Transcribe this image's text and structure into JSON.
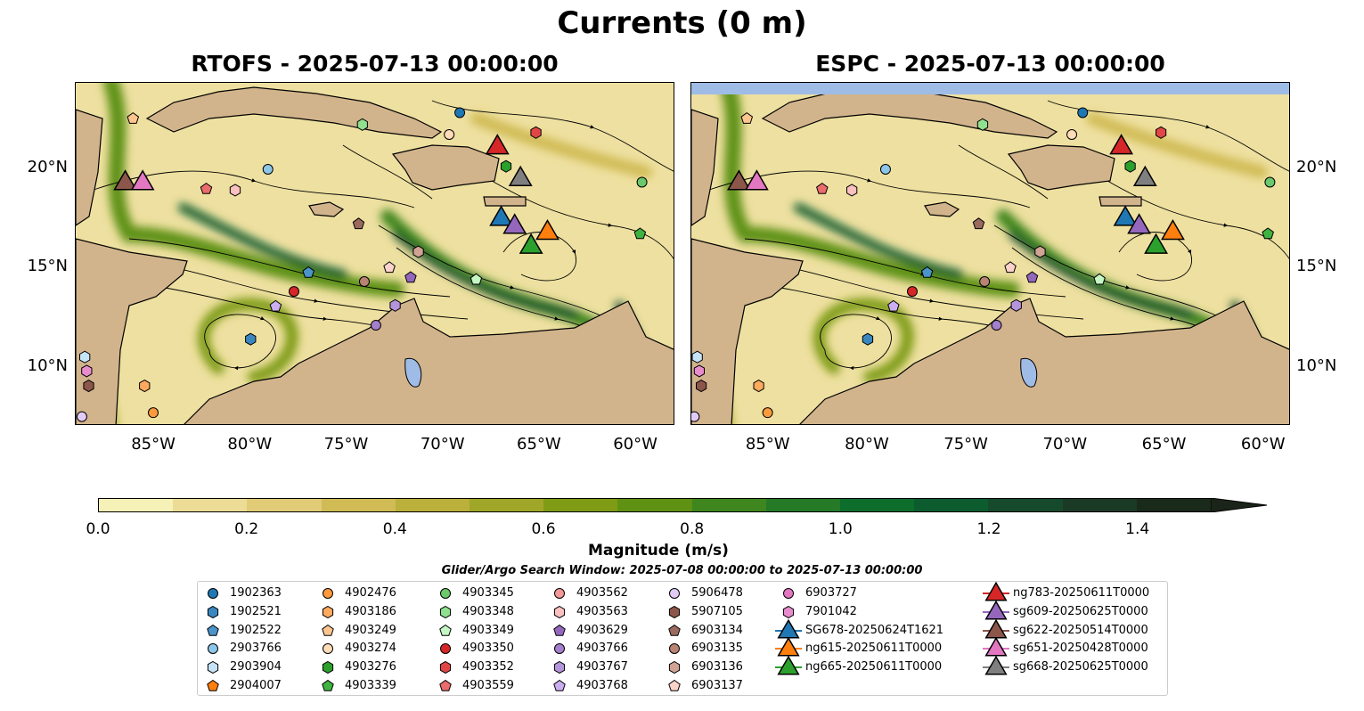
{
  "title": "Currents (0 m)",
  "maps": [
    {
      "title": "RTOFS - 2025-07-13 00:00:00",
      "model": "RTOFS"
    },
    {
      "title": "ESPC - 2025-07-13 00:00:00",
      "model": "ESPC"
    }
  ],
  "lat_ticks": [
    {
      "value": 20,
      "label": "20°N"
    },
    {
      "value": 15,
      "label": "15°N"
    },
    {
      "value": 10,
      "label": "10°N"
    }
  ],
  "lon_ticks": [
    {
      "value": -85,
      "label": "85°W"
    },
    {
      "value": -80,
      "label": "80°W"
    },
    {
      "value": -75,
      "label": "75°W"
    },
    {
      "value": -70,
      "label": "70°W"
    },
    {
      "value": -65,
      "label": "65°W"
    },
    {
      "value": -60,
      "label": "60°W"
    }
  ],
  "colorbar": {
    "label": "Magnitude (m/s)",
    "ticks": [
      "0.0",
      "0.2",
      "0.4",
      "0.6",
      "0.8",
      "1.0",
      "1.2",
      "1.4"
    ],
    "range": [
      0,
      1.5
    ],
    "colors": [
      "#f6f1b7",
      "#ecdc96",
      "#e1cb76",
      "#d0bb55",
      "#bbb03b",
      "#a0a628",
      "#7f9c14",
      "#5f9213",
      "#3f861f",
      "#257a27",
      "#0d6e2c",
      "#0c5c2f",
      "#164a2d",
      "#1a3a25",
      "#1a2a1a"
    ],
    "extend_color": "#1a2418"
  },
  "search_window": "Glider/Argo Search Window: 2025-07-08 00:00:00 to 2025-07-13 00:00:00",
  "floats": [
    {
      "id": "1902363",
      "color": "#1f77b4",
      "shape": "circle",
      "lon": -69.15,
      "lat": 22.8
    },
    {
      "id": "1902521",
      "color": "#3a87c0",
      "shape": "hexagon",
      "lon": -80.0,
      "lat": 11.4
    },
    {
      "id": "1902522",
      "color": "#4a94c9",
      "shape": "pentagon",
      "lon": -77.0,
      "lat": 14.75
    },
    {
      "id": "2903766",
      "color": "#8ec6ea",
      "shape": "circle",
      "lon": -79.1,
      "lat": 19.95
    },
    {
      "id": "2903904",
      "color": "#c6e4f7",
      "shape": "hexagon",
      "lon": -88.6,
      "lat": 10.5
    },
    {
      "id": "2904007",
      "color": "#ff7f0e",
      "shape": "pentagon",
      "lon": null,
      "lat": null
    },
    {
      "id": "4902476",
      "color": "#ff9a3c",
      "shape": "circle",
      "lon": -85.05,
      "lat": 7.7
    },
    {
      "id": "4903186",
      "color": "#ffaa5e",
      "shape": "hexagon",
      "lon": -85.5,
      "lat": 9.05
    },
    {
      "id": "4903249",
      "color": "#ffc58f",
      "shape": "pentagon",
      "lon": -86.1,
      "lat": 22.5
    },
    {
      "id": "4903274",
      "color": "#ffdcb8",
      "shape": "circle",
      "lon": -69.7,
      "lat": 21.7
    },
    {
      "id": "4903276",
      "color": "#2ca02c",
      "shape": "hexagon",
      "lon": -66.75,
      "lat": 20.1
    },
    {
      "id": "4903339",
      "color": "#3fb33f",
      "shape": "pentagon",
      "lon": -59.8,
      "lat": 16.7
    },
    {
      "id": "4903345",
      "color": "#6cc86c",
      "shape": "circle",
      "lon": -59.7,
      "lat": 19.3
    },
    {
      "id": "4903348",
      "color": "#90e090",
      "shape": "hexagon",
      "lon": -74.2,
      "lat": 22.2
    },
    {
      "id": "4903349",
      "color": "#c4f7c4",
      "shape": "pentagon",
      "lon": -68.3,
      "lat": 14.4
    },
    {
      "id": "4903350",
      "color": "#d62728",
      "shape": "circle",
      "lon": -77.75,
      "lat": 13.8
    },
    {
      "id": "4903352",
      "color": "#e04646",
      "shape": "hexagon",
      "lon": -65.2,
      "lat": 21.8
    },
    {
      "id": "4903559",
      "color": "#ea6c6c",
      "shape": "pentagon",
      "lon": -82.3,
      "lat": 18.96
    },
    {
      "id": "4903562",
      "color": "#f29898",
      "shape": "circle",
      "lon": null,
      "lat": null
    },
    {
      "id": "4903563",
      "color": "#fbc0c0",
      "shape": "hexagon",
      "lon": -80.8,
      "lat": 18.9
    },
    {
      "id": "4903629",
      "color": "#9467bd",
      "shape": "pentagon",
      "lon": -71.7,
      "lat": 14.5
    },
    {
      "id": "4903766",
      "color": "#a47fcc",
      "shape": "circle",
      "lon": -73.5,
      "lat": 12.1
    },
    {
      "id": "4903767",
      "color": "#b594db",
      "shape": "hexagon",
      "lon": -72.5,
      "lat": 13.1
    },
    {
      "id": "4903768",
      "color": "#caaeef",
      "shape": "pentagon",
      "lon": -78.7,
      "lat": 13.05
    },
    {
      "id": "5906478",
      "color": "#e2ccf7",
      "shape": "circle",
      "lon": -88.75,
      "lat": 7.5
    },
    {
      "id": "5907105",
      "color": "#8c564b",
      "shape": "hexagon",
      "lon": -88.4,
      "lat": 9.05
    },
    {
      "id": "6903134",
      "color": "#9b6a5f",
      "shape": "pentagon",
      "lon": -74.4,
      "lat": 17.2
    },
    {
      "id": "6903135",
      "color": "#b98374",
      "shape": "circle",
      "lon": -74.1,
      "lat": 14.3
    },
    {
      "id": "6903136",
      "color": "#d1a394",
      "shape": "hexagon",
      "lon": -71.3,
      "lat": 15.8
    },
    {
      "id": "6903137",
      "color": "#fbd3cb",
      "shape": "pentagon",
      "lon": -72.8,
      "lat": 15.0
    },
    {
      "id": "6903727",
      "color": "#e377c2",
      "shape": "circle",
      "lon": null,
      "lat": null
    },
    {
      "id": "7901042",
      "color": "#e88ccd",
      "shape": "hexagon",
      "lon": -88.5,
      "lat": 9.8
    }
  ],
  "gliders": [
    {
      "id": "SG678-20250624T1621",
      "color": "#1f77b4",
      "lon": -67.0,
      "lat": 17.6
    },
    {
      "id": "ng615-20250611T0000",
      "color": "#ff7f0e",
      "lon": -64.6,
      "lat": 16.9
    },
    {
      "id": "ng665-20250611T0000",
      "color": "#2ca02c",
      "lon": -65.45,
      "lat": 16.2
    },
    {
      "id": "ng783-20250611T0000",
      "color": "#d62728",
      "lon": -67.2,
      "lat": 21.2
    },
    {
      "id": "sg609-20250625T0000",
      "color": "#9467bd",
      "lon": -66.3,
      "lat": 17.2
    },
    {
      "id": "sg622-20250514T0000",
      "color": "#8c564b",
      "lon": -86.5,
      "lat": 19.4
    },
    {
      "id": "sg651-20250428T0000",
      "color": "#e377c2",
      "lon": -85.6,
      "lat": 19.4
    },
    {
      "id": "sg668-20250625T0000",
      "color": "#7f7f7f",
      "lon": -66.0,
      "lat": 19.6
    }
  ]
}
